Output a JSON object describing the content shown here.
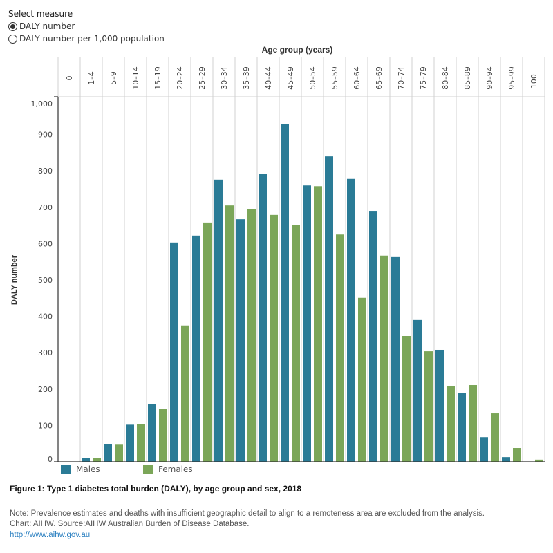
{
  "measure": {
    "title": "Select measure",
    "options": [
      {
        "label": "DALY number",
        "selected": true
      },
      {
        "label": "DALY number per 1,000 population",
        "selected": false
      }
    ]
  },
  "chart_data": {
    "type": "bar",
    "title": "Figure 1: Type 1 diabetes total burden (DALY), by age group and sex, 2018",
    "xlabel": "Age group (years)",
    "ylabel": "DALY number",
    "ylim": [
      0,
      1000
    ],
    "yticks": [
      0,
      100,
      200,
      300,
      400,
      500,
      600,
      700,
      800,
      900,
      1000
    ],
    "ytick_labels": [
      "0",
      "100",
      "200",
      "300",
      "400",
      "500",
      "600",
      "700",
      "800",
      "900",
      "1,000"
    ],
    "categories": [
      "0",
      "1–4",
      "5–9",
      "10–14",
      "15–19",
      "20–24",
      "25–29",
      "30–34",
      "35–39",
      "40–44",
      "45–49",
      "50–54",
      "55–59",
      "60–64",
      "65–69",
      "70–74",
      "75–79",
      "80–84",
      "85–89",
      "90–94",
      "95–99",
      "100+"
    ],
    "series": [
      {
        "name": "Males",
        "color": "#2a7b96",
        "values": [
          0,
          10,
          49,
          102,
          158,
          603,
          622,
          776,
          667,
          791,
          928,
          760,
          840,
          778,
          690,
          563,
          390,
          308,
          190,
          68,
          13,
          0
        ]
      },
      {
        "name": "Females",
        "color": "#7ba658",
        "values": [
          0,
          10,
          47,
          104,
          146,
          375,
          658,
          705,
          694,
          679,
          652,
          758,
          625,
          451,
          567,
          346,
          304,
          209,
          211,
          133,
          38,
          6
        ]
      }
    ],
    "grid": "vertical",
    "legend": "bottom-left"
  },
  "footer": {
    "note": "Note: Prevalence estimates and deaths with insufficient geographic detail to align to a remoteness area are excluded from the analysis.",
    "source": "Chart: AIHW. Source:AIHW Australian Burden of Disease Database.",
    "link": "http://www.aihw.gov.au"
  }
}
